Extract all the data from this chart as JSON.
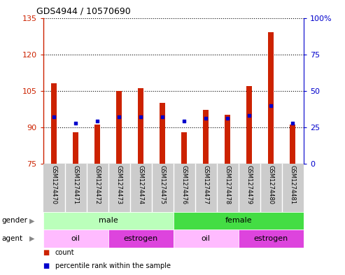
{
  "title": "GDS4944 / 10570690",
  "samples": [
    "GSM1274470",
    "GSM1274471",
    "GSM1274472",
    "GSM1274473",
    "GSM1274474",
    "GSM1274475",
    "GSM1274476",
    "GSM1274477",
    "GSM1274478",
    "GSM1274479",
    "GSM1274480",
    "GSM1274481"
  ],
  "counts": [
    108,
    88,
    91,
    105,
    106,
    100,
    88,
    97,
    95,
    107,
    129,
    91
  ],
  "percentile_ranks": [
    32,
    28,
    29,
    32,
    32,
    32,
    29,
    31,
    31,
    33,
    40,
    28
  ],
  "bar_bottom": 75,
  "ylim_left": [
    75,
    135
  ],
  "ylim_right": [
    0,
    100
  ],
  "yticks_left": [
    75,
    90,
    105,
    120,
    135
  ],
  "yticks_right": [
    0,
    25,
    50,
    75,
    100
  ],
  "bar_color": "#cc2200",
  "dot_color": "#0000cc",
  "left_axis_color": "#cc2200",
  "right_axis_color": "#0000cc",
  "gender_groups": [
    {
      "label": "male",
      "start": 0,
      "end": 6,
      "color": "#bbffbb"
    },
    {
      "label": "female",
      "start": 6,
      "end": 12,
      "color": "#44dd44"
    }
  ],
  "agent_groups": [
    {
      "label": "oil",
      "start": 0,
      "end": 3,
      "color": "#ffbbff"
    },
    {
      "label": "estrogen",
      "start": 3,
      "end": 6,
      "color": "#dd44dd"
    },
    {
      "label": "oil",
      "start": 6,
      "end": 9,
      "color": "#ffbbff"
    },
    {
      "label": "estrogen",
      "start": 9,
      "end": 12,
      "color": "#dd44dd"
    }
  ],
  "figsize": [
    4.93,
    3.93
  ],
  "dpi": 100
}
